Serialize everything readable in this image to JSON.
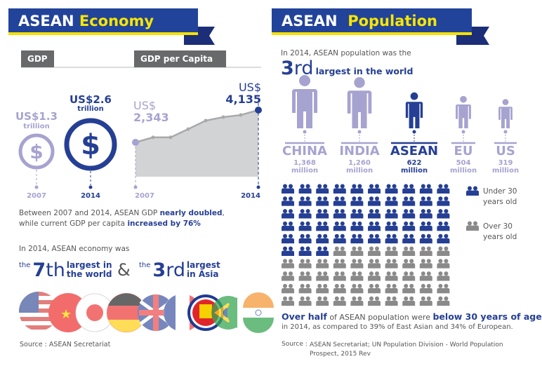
{
  "economy": {
    "title_main": "ASEAN",
    "title_accent": "Economy",
    "tabs": {
      "gdp": "GDP",
      "gdp_per_capita": "GDP per Capita"
    },
    "gdp": {
      "y2007": {
        "value": "US$1.3",
        "unit": "trillion",
        "year": "2007",
        "icon": "dollar-icon"
      },
      "y2014": {
        "value": "US$2.6",
        "unit": "trillion",
        "year": "2014",
        "icon": "dollar-icon"
      }
    },
    "per_capita": {
      "start": {
        "currency": "US$",
        "value": "2,343",
        "year": "2007"
      },
      "end": {
        "currency": "US$",
        "value": "4,135",
        "year": "2014"
      }
    },
    "summary": {
      "line1_pre": "Between 2007 and 2014, ASEAN GDP ",
      "line1_bold": "nearly doubled",
      "line1_post": ",",
      "line2_pre": "while current GDP per capita ",
      "line2_bold": "increased by 76%"
    },
    "rank_intro": "In 2014, ASEAN economy was",
    "rank1": {
      "the": "the",
      "num": "7",
      "suffix": "th",
      "l1": "largest in",
      "l2": "the world"
    },
    "amp": "&",
    "rank2": {
      "the": "the",
      "num": "3",
      "suffix": "rd",
      "l1": "largest",
      "l2": "in Asia"
    },
    "flags": [
      "us-flag-icon",
      "china-flag-icon",
      "japan-flag-icon",
      "germany-flag-icon",
      "uk-flag-icon",
      "france-flag-icon",
      "asean-emblem-icon",
      "brazil-flag-icon",
      "italy-flag-icon",
      "india-flag-icon"
    ],
    "source": "Source :  ASEAN Secretariat"
  },
  "population": {
    "title_main": "ASEAN",
    "title_accent": "Population",
    "intro": "In 2014, ASEAN population was the",
    "rank_num": "3",
    "rank_suffix": "rd",
    "rank_text": "largest in the world",
    "countries": [
      {
        "name": "CHINA",
        "value": "1,368",
        "unit": "million"
      },
      {
        "name": "INDIA",
        "value": "1,260",
        "unit": "million"
      },
      {
        "name": "ASEAN",
        "value": "622",
        "unit": "million"
      },
      {
        "name": "EU",
        "value": "504",
        "unit": "million"
      },
      {
        "name": "US",
        "value": "319",
        "unit": "million"
      }
    ],
    "legend": {
      "under_l1": "Under 30",
      "under_l2": "years old",
      "over_l1": "Over 30",
      "over_l2": "years old"
    },
    "summary": {
      "b1": "Over half",
      "mid": " of ASEAN population were ",
      "b2": "below 30 years of age",
      "line2": "in 2014, as compared to 39% of East Asian and 34% of European."
    },
    "source_label": "Source :",
    "source_l1": "ASEAN Secretariat; UN Population Division - World Population",
    "source_l2": "Prospect, 2015 Rev"
  },
  "colors": {
    "navy": "#253f94",
    "lavender": "#a6a3d0",
    "gray": "#8a8a8a",
    "yellow": "#f5e000",
    "area": "#d2d3d5"
  },
  "chart_data": [
    {
      "type": "area",
      "title": "GDP per Capita",
      "x": [
        2007,
        2008,
        2009,
        2010,
        2011,
        2012,
        2013,
        2014
      ],
      "values": [
        2343,
        2620,
        2620,
        3080,
        3550,
        3745,
        3860,
        4135
      ],
      "unit": "US$",
      "labels": [
        "US$ 2,343",
        "US$ 4,135"
      ],
      "tick_labels": [
        "2007",
        "2014"
      ]
    },
    {
      "type": "bar",
      "title": "GDP",
      "categories": [
        "2007",
        "2014"
      ],
      "values": [
        1.3,
        2.6
      ],
      "unit": "US$ trillion"
    },
    {
      "type": "pictograph",
      "categories": [
        "CHINA",
        "INDIA",
        "ASEAN",
        "EU",
        "US"
      ],
      "values": [
        1368,
        1260,
        622,
        504,
        319
      ],
      "unit": "million"
    },
    {
      "type": "waffle",
      "series": [
        {
          "name": "Under 30 years old",
          "values": [
            53
          ]
        },
        {
          "name": "Over 30 years old",
          "values": [
            47
          ]
        }
      ],
      "total": 100
    }
  ]
}
